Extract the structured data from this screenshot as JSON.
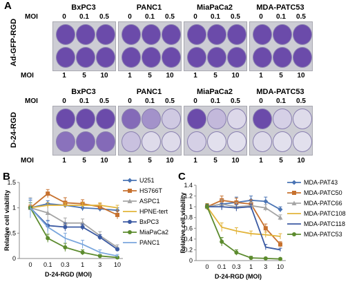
{
  "panel_a": {
    "letter": "A",
    "cell_lines": [
      "BxPC3",
      "PANC1",
      "MiaPaCa2",
      "MDA-PATC53"
    ],
    "moi_top": [
      "0",
      "0.1",
      "0.5"
    ],
    "moi_bottom": [
      "1",
      "5",
      "10"
    ],
    "moi_label": "MOI",
    "treatments": [
      {
        "label": "Ad-GFP-RGD",
        "wells": [
          [
            [
              1,
              1,
              1
            ],
            [
              1,
              1,
              1
            ]
          ],
          [
            [
              1,
              1,
              1
            ],
            [
              1,
              1,
              1
            ]
          ],
          [
            [
              1,
              1,
              1
            ],
            [
              1,
              1,
              1
            ]
          ],
          [
            [
              1,
              1,
              1
            ],
            [
              1,
              1,
              1
            ]
          ]
        ]
      },
      {
        "label": "D-24-RGD",
        "wells": [
          [
            [
              1,
              1,
              1
            ],
            [
              0.75,
              0.85,
              0.8
            ]
          ],
          [
            [
              0.8,
              0.55,
              0.2
            ],
            [
              0.25,
              0.08,
              0.08
            ]
          ],
          [
            [
              1,
              0.3,
              0.1
            ],
            [
              0.15,
              0.05,
              0.05
            ]
          ],
          [
            [
              1,
              0.15,
              0.08
            ],
            [
              0.08,
              0.05,
              0.05
            ]
          ]
        ]
      }
    ]
  },
  "panel_b": {
    "letter": "B",
    "chart_data": {
      "type": "line",
      "xlabel": "D-24-RGD (MOI)",
      "ylabel": "Relative cell viability",
      "x": [
        "0",
        "0.1",
        "0.3",
        "1",
        "3",
        "10"
      ],
      "ylim": [
        0,
        1.5
      ],
      "yticks": [
        "0",
        "0.5",
        "1",
        "1.5"
      ],
      "series": [
        {
          "name": "U251",
          "color": "#4a74b4",
          "marker": "diamond",
          "values": [
            1.0,
            1.08,
            1.05,
            1.0,
            0.98,
            0.95
          ],
          "err": [
            0.05,
            0.06,
            0.05,
            0.06,
            0.05,
            0.05
          ]
        },
        {
          "name": "HS766T",
          "color": "#c7712e",
          "marker": "square",
          "values": [
            1.0,
            1.28,
            1.1,
            1.08,
            1.02,
            0.86
          ],
          "err": [
            0.06,
            0.08,
            0.1,
            0.08,
            0.06,
            0.08
          ]
        },
        {
          "name": "ASPC1",
          "color": "#a5a5a5",
          "marker": "triangle",
          "values": [
            1.0,
            0.9,
            0.7,
            0.7,
            0.45,
            0.22
          ],
          "err": [
            0.2,
            0.15,
            0.1,
            0.08,
            0.08,
            0.05
          ]
        },
        {
          "name": "HPNE-tert",
          "color": "#e2b43a",
          "marker": "line",
          "values": [
            1.0,
            1.05,
            1.05,
            1.05,
            1.05,
            1.0
          ],
          "err": [
            0.05,
            0.05,
            0.05,
            0.05,
            0.05,
            0.05
          ]
        },
        {
          "name": "BxPC3",
          "color": "#3b5aa3",
          "marker": "circle",
          "values": [
            1.0,
            0.65,
            0.62,
            0.62,
            0.42,
            0.18
          ],
          "err": [
            0.15,
            0.1,
            0.08,
            0.06,
            0.05,
            0.03
          ]
        },
        {
          "name": "MiaPaCa2",
          "color": "#5c8b2e",
          "marker": "circle",
          "values": [
            1.0,
            0.4,
            0.22,
            0.12,
            0.05,
            0.02
          ],
          "err": [
            0.1,
            0.08,
            0.08,
            0.05,
            0.03,
            0.02
          ]
        },
        {
          "name": "PANC1",
          "color": "#79a6dd",
          "marker": "line",
          "values": [
            1.0,
            0.62,
            0.4,
            0.28,
            0.12,
            0.05
          ],
          "err": [
            0.18,
            0.12,
            0.1,
            0.08,
            0.05,
            0.03
          ]
        }
      ]
    }
  },
  "panel_c": {
    "letter": "C",
    "chart_data": {
      "type": "line",
      "xlabel": "D-24-RGD (MOI)",
      "ylabel": "Relative cell viability",
      "x": [
        "0",
        "0.1",
        "0.3",
        "1",
        "3",
        "10"
      ],
      "ylim": [
        0,
        1.4
      ],
      "yticks": [
        "0",
        "0.2",
        "0.4",
        "0.6",
        "0.8",
        "1",
        "1.2",
        "1.4"
      ],
      "series": [
        {
          "name": "MDA-PAT43",
          "color": "#4a74b4",
          "marker": "diamond",
          "values": [
            1.0,
            1.05,
            1.08,
            1.12,
            1.1,
            0.95
          ],
          "err": [
            0.05,
            0.1,
            0.1,
            0.08,
            0.08,
            0.05
          ]
        },
        {
          "name": "MDA-PATC50",
          "color": "#c7712e",
          "marker": "square",
          "values": [
            1.0,
            1.12,
            1.08,
            1.05,
            0.6,
            0.3
          ],
          "err": [
            0.06,
            0.08,
            0.08,
            0.08,
            0.08,
            0.05
          ]
        },
        {
          "name": "MDA-PATC66",
          "color": "#a5a5a5",
          "marker": "triangle",
          "values": [
            1.0,
            1.05,
            1.0,
            1.02,
            0.98,
            0.8
          ],
          "err": [
            0.05,
            0.08,
            0.08,
            0.06,
            0.06,
            0.05
          ]
        },
        {
          "name": "MDA-PATC108",
          "color": "#e2b43a",
          "marker": "line",
          "values": [
            1.0,
            0.62,
            0.55,
            0.5,
            0.48,
            0.45
          ],
          "err": [
            0.05,
            0.08,
            0.06,
            0.05,
            0.05,
            0.05
          ]
        },
        {
          "name": "MDA-PATC118",
          "color": "#3b5aa3",
          "marker": "line",
          "values": [
            1.0,
            1.0,
            0.98,
            1.0,
            0.25,
            0.2
          ],
          "err": [
            0.04,
            0.06,
            0.06,
            0.05,
            0.05,
            0.03
          ]
        },
        {
          "name": "MDA-PATC53",
          "color": "#5c8b2e",
          "marker": "circle",
          "values": [
            1.0,
            0.35,
            0.15,
            0.05,
            0.04,
            0.03
          ],
          "err": [
            0.05,
            0.08,
            0.05,
            0.03,
            0.02,
            0.02
          ]
        }
      ]
    }
  }
}
